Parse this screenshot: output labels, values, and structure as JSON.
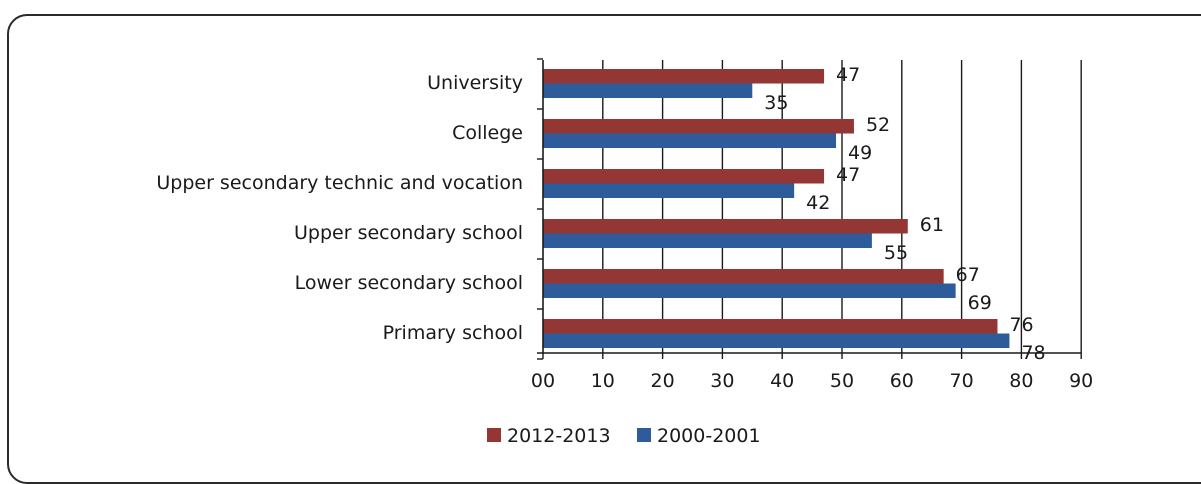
{
  "chart_data": {
    "type": "bar",
    "orientation": "horizontal",
    "categories": [
      "University",
      "College",
      "Upper secondary technic and vocation",
      "Upper secondary school",
      "Lower secondary school",
      "Primary school"
    ],
    "series": [
      {
        "name": "2012-2013",
        "color": "#943634",
        "values": [
          47,
          52,
          47,
          61,
          67,
          76
        ]
      },
      {
        "name": "2000-2001",
        "color": "#2e5c9a",
        "values": [
          35,
          49,
          42,
          55,
          69,
          78
        ]
      }
    ],
    "x_ticks": [
      "00",
      "10",
      "20",
      "30",
      "40",
      "50",
      "60",
      "70",
      "80",
      "90"
    ],
    "xlim": [
      0,
      90
    ],
    "grid": true,
    "legend_position": "bottom",
    "title": "",
    "xlabel": "",
    "ylabel": ""
  }
}
